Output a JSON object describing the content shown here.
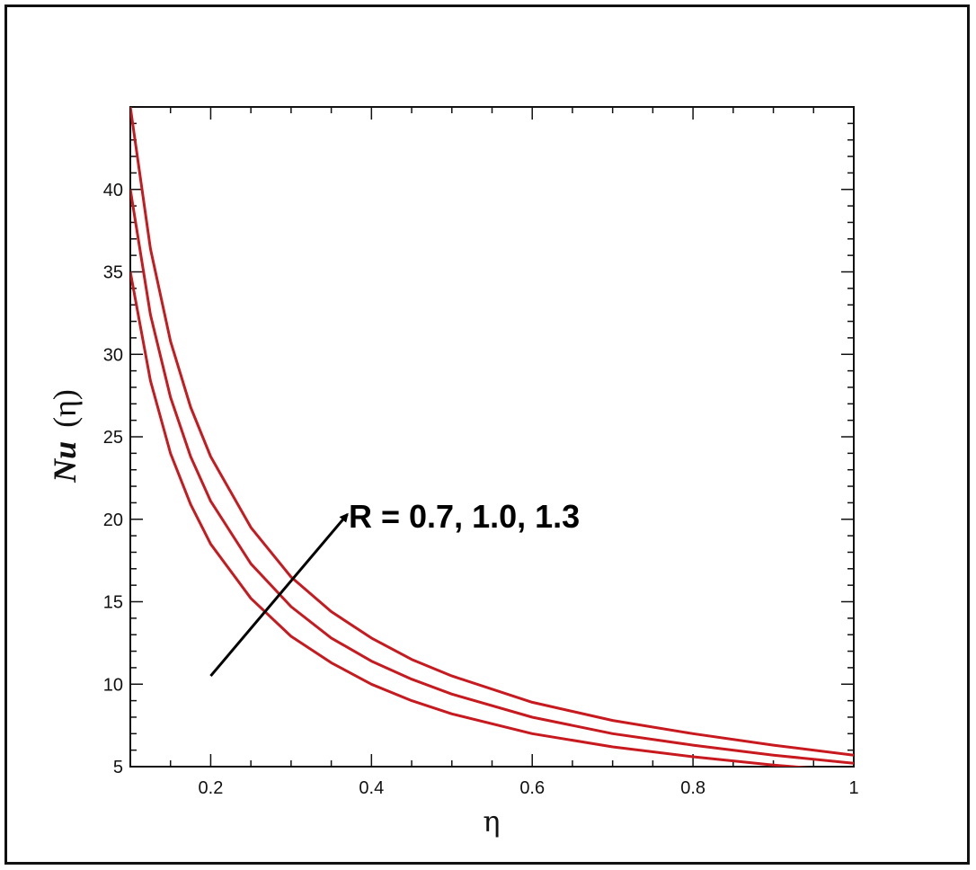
{
  "chart_data": {
    "type": "line",
    "title": "",
    "xlabel": "η",
    "ylabel": {
      "main": "Nu",
      "arg": "(η)"
    },
    "xlim": [
      0.1,
      1.0
    ],
    "ylim": [
      5,
      45
    ],
    "x_ticks": [
      "0.2",
      "0.4",
      "0.6",
      "0.8",
      "1"
    ],
    "y_ticks": [
      "5",
      "10",
      "15",
      "20",
      "25",
      "30",
      "35",
      "40"
    ],
    "grid": false,
    "legend": "none",
    "annotation": {
      "text": "R = 0.7, 1.0, 1.3",
      "arrow_from": [
        0.2,
        10.5
      ],
      "arrow_to": [
        0.37,
        20.3
      ]
    },
    "line_color": "#c8191e",
    "x": [
      0.1,
      0.125,
      0.15,
      0.175,
      0.2,
      0.25,
      0.3,
      0.35,
      0.4,
      0.45,
      0.5,
      0.6,
      0.7,
      0.8,
      0.9,
      1.0
    ],
    "series": [
      {
        "values": [
          35.0,
          28.4,
          24.0,
          20.9,
          18.5,
          15.2,
          12.9,
          11.3,
          10.0,
          9.0,
          8.2,
          7.0,
          6.2,
          5.6,
          5.1,
          4.7
        ]
      },
      {
        "values": [
          40.0,
          32.4,
          27.4,
          23.8,
          21.1,
          17.3,
          14.7,
          12.8,
          11.4,
          10.3,
          9.4,
          8.0,
          7.0,
          6.3,
          5.7,
          5.2
        ]
      },
      {
        "values": [
          45.0,
          36.4,
          30.8,
          26.8,
          23.8,
          19.5,
          16.5,
          14.4,
          12.8,
          11.5,
          10.5,
          8.9,
          7.8,
          7.0,
          6.3,
          5.7
        ]
      }
    ]
  }
}
